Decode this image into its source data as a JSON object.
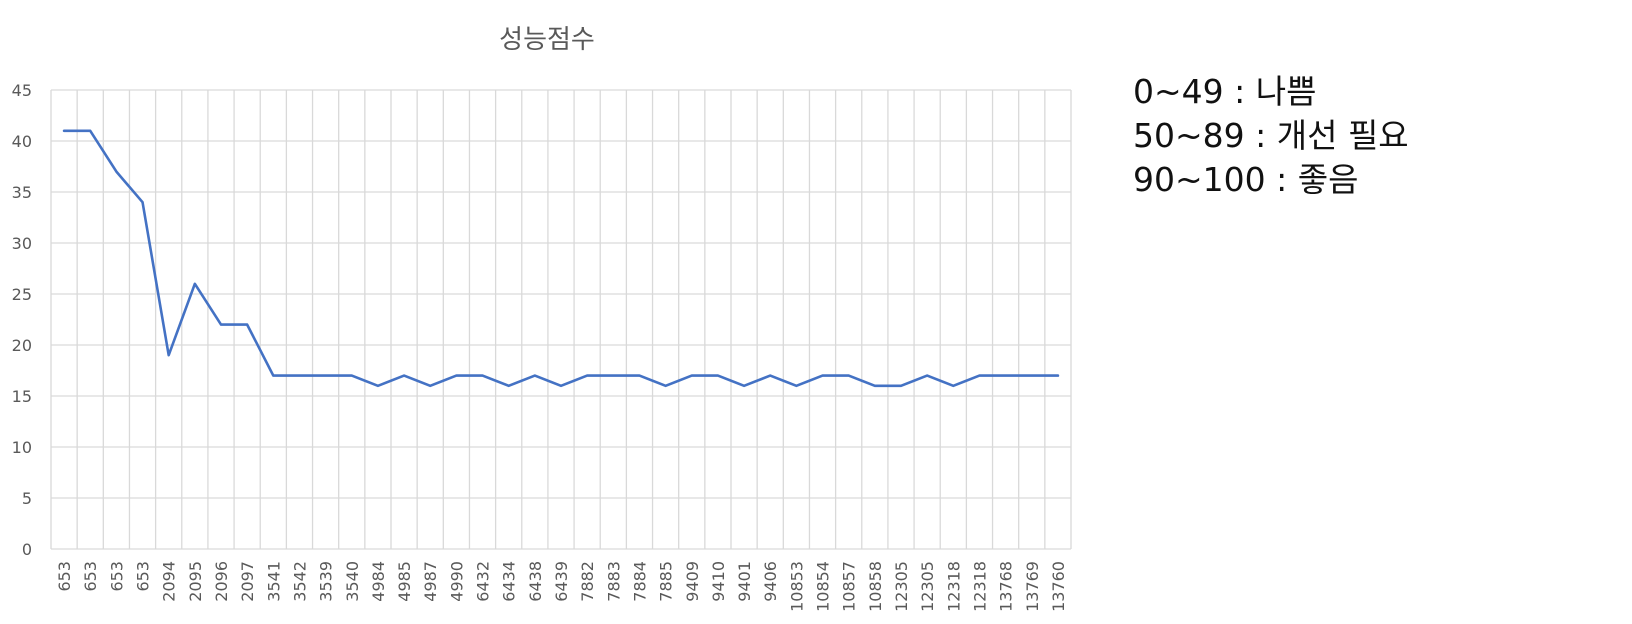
{
  "chart_data": {
    "type": "line",
    "title": "성능점수",
    "xlabel": "",
    "ylabel": "",
    "categories": [
      "653",
      "653",
      "653",
      "653",
      "2094",
      "2095",
      "2096",
      "2097",
      "3541",
      "3542",
      "3539",
      "3540",
      "4984",
      "4985",
      "4987",
      "4990",
      "6432",
      "6434",
      "6438",
      "6439",
      "7882",
      "7883",
      "7884",
      "7885",
      "9409",
      "9410",
      "9401",
      "9406",
      "10853",
      "10854",
      "10857",
      "10858",
      "12305",
      "12305",
      "12318",
      "12318",
      "13768",
      "13769",
      "13760"
    ],
    "series": [
      {
        "values": [
          41,
          41,
          37,
          34,
          19,
          26,
          22,
          22,
          17,
          17,
          17,
          17,
          16,
          17,
          16,
          17,
          17,
          16,
          17,
          16,
          17,
          17,
          17,
          16,
          17,
          17,
          16,
          17,
          16,
          17,
          17,
          16,
          16,
          17,
          16,
          17,
          17,
          17,
          17
        ]
      }
    ],
    "ylim": [
      0,
      45
    ],
    "yticks": [
      0,
      5,
      10,
      15,
      20,
      25,
      30,
      35,
      40,
      45
    ],
    "grid": true,
    "colors": {
      "line": "#4472C4",
      "grid": "#D9D9D9",
      "axis_text": "#595959",
      "title": "#595959"
    }
  },
  "annotation": {
    "lines": [
      "0~49 : 나쁨",
      "50~89 : 개선 필요",
      "90~100 : 좋음"
    ]
  }
}
